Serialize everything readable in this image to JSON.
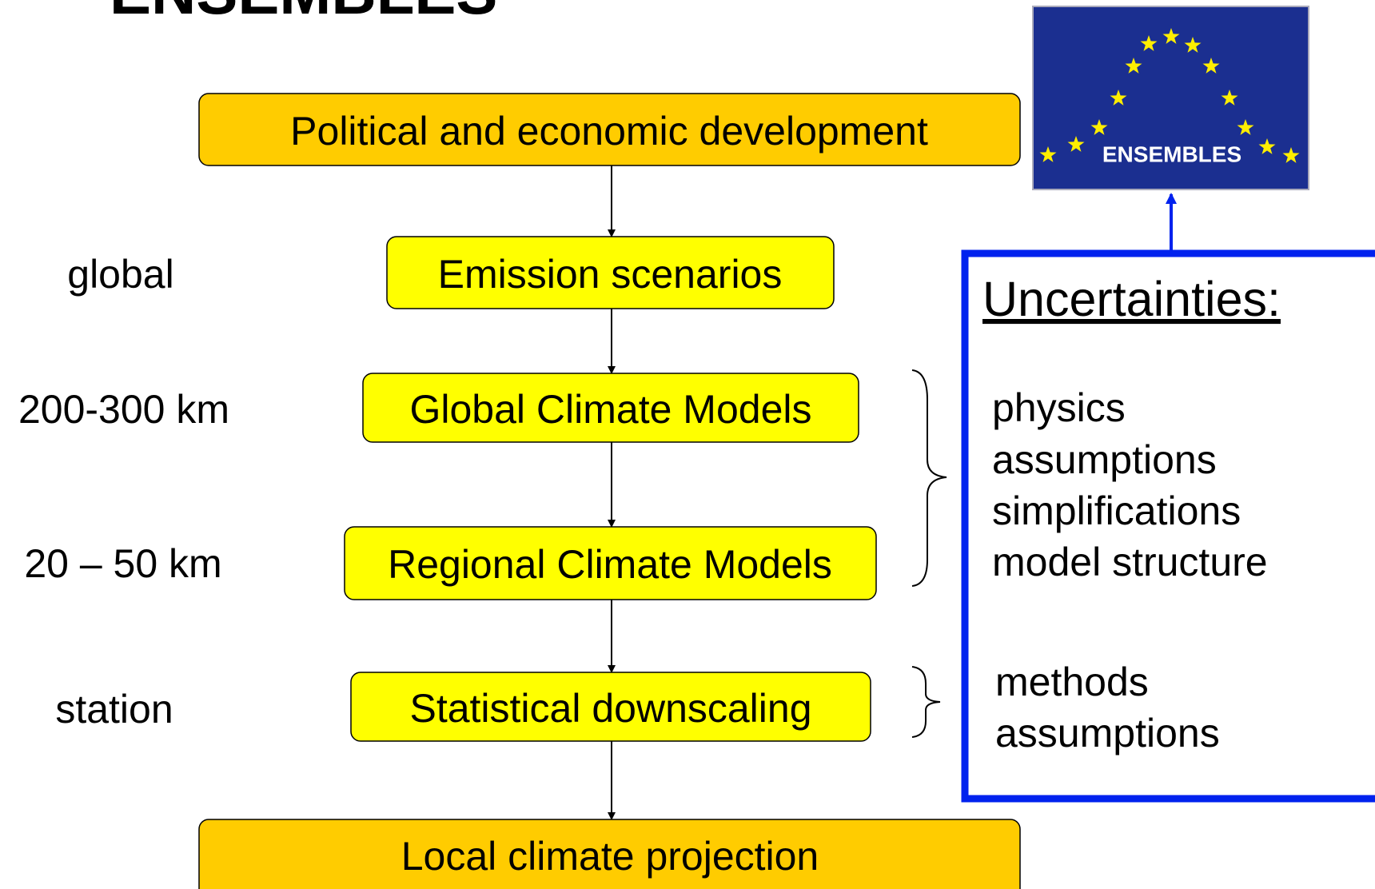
{
  "header": {
    "title": "ENSEMBLES"
  },
  "logo": {
    "text": "ENSEMBLES"
  },
  "nodes": [
    {
      "label": "Political and economic development"
    },
    {
      "label": "Emission scenarios"
    },
    {
      "label": "Global Climate Models"
    },
    {
      "label": "Regional Climate Models"
    },
    {
      "label": "Statistical downscaling"
    },
    {
      "label": "Local climate projection"
    }
  ],
  "scales": [
    "global",
    "200-300 km",
    "20 – 50 km",
    "station"
  ],
  "uncertainties": {
    "title": "Uncertainties:",
    "models": [
      "physics",
      "assumptions",
      "simplifications",
      "model structure"
    ],
    "downscaling": [
      "methods",
      "assumptions"
    ]
  }
}
